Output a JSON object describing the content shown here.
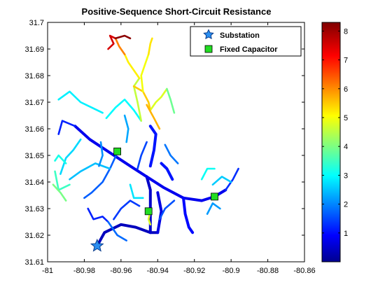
{
  "chart_data": {
    "type": "scatter",
    "title": "Positive-Sequence Short-Circuit Resistance",
    "xlabel": "",
    "ylabel": "",
    "xlim": [
      -81,
      -80.86
    ],
    "ylim": [
      31.61,
      31.7
    ],
    "x_ticks": [
      -81,
      -80.98,
      -80.96,
      -80.94,
      -80.92,
      -80.9,
      -80.88,
      -80.86
    ],
    "x_tick_labels": [
      "-81",
      "-80.98",
      "-80.96",
      "-80.94",
      "-80.92",
      "-80.9",
      "-80.88",
      "-80.86"
    ],
    "y_ticks": [
      31.61,
      31.62,
      31.63,
      31.64,
      31.65,
      31.66,
      31.67,
      31.68,
      31.69,
      31.7
    ],
    "y_tick_labels": [
      "31.61",
      "31.62",
      "31.63",
      "31.64",
      "31.65",
      "31.66",
      "31.67",
      "31.68",
      "31.69",
      "31.7"
    ],
    "grid": false,
    "legend": {
      "location": "top-right",
      "entries": [
        {
          "label": "Substation",
          "marker": "star",
          "color": "#2a8ef0"
        },
        {
          "label": "Fixed Capacitor",
          "marker": "square",
          "color": "#22dd22"
        }
      ]
    },
    "colorbar": {
      "range": [
        0,
        8.3
      ],
      "ticks": [
        1,
        2,
        3,
        4,
        5,
        6,
        7,
        8
      ],
      "tick_labels": [
        "1",
        "2",
        "3",
        "4",
        "5",
        "6",
        "7",
        "8"
      ],
      "colormap": "jet"
    },
    "substation": {
      "x": -80.973,
      "y": 31.616
    },
    "capacitors": [
      {
        "x": -80.962,
        "y": 31.6515
      },
      {
        "x": -80.945,
        "y": 31.629
      },
      {
        "x": -80.909,
        "y": 31.6345
      }
    ],
    "feeder_segments": [
      {
        "points": [
          [
            -80.973,
            31.616
          ],
          [
            -80.969,
            31.621
          ],
          [
            -80.96,
            31.624
          ],
          [
            -80.952,
            31.623
          ],
          [
            -80.944,
            31.621
          ],
          [
            -80.94,
            31.621
          ]
        ],
        "value": 0.5
      },
      {
        "points": [
          [
            -80.944,
            31.621
          ],
          [
            -80.944,
            31.629
          ],
          [
            -80.944,
            31.637
          ],
          [
            -80.946,
            31.642
          ]
        ],
        "value": 0.6
      },
      {
        "points": [
          [
            -80.946,
            31.642
          ],
          [
            -80.955,
            31.646
          ],
          [
            -80.966,
            31.651
          ],
          [
            -80.977,
            31.656
          ],
          [
            -80.985,
            31.661
          ]
        ],
        "value": 0.9
      },
      {
        "points": [
          [
            -80.946,
            31.642
          ],
          [
            -80.937,
            31.638
          ],
          [
            -80.926,
            31.634
          ],
          [
            -80.916,
            31.633
          ],
          [
            -80.909,
            31.6345
          ],
          [
            -80.903,
            31.637
          ]
        ],
        "value": 0.9
      },
      {
        "points": [
          [
            -80.944,
            31.646
          ],
          [
            -80.942,
            31.652
          ],
          [
            -80.941,
            31.658
          ],
          [
            -80.944,
            31.661
          ]
        ],
        "value": 1.2
      },
      {
        "points": [
          [
            -80.94,
            31.621
          ],
          [
            -80.938,
            31.629
          ],
          [
            -80.94,
            31.636
          ]
        ],
        "value": 0.8
      },
      {
        "points": [
          [
            -80.985,
            31.661
          ],
          [
            -80.992,
            31.663
          ],
          [
            -80.994,
            31.658
          ]
        ],
        "value": 1.3
      },
      {
        "points": [
          [
            -80.962,
            31.651
          ],
          [
            -80.966,
            31.645
          ],
          [
            -80.97,
            31.64
          ],
          [
            -80.976,
            31.636
          ],
          [
            -80.98,
            31.634
          ]
        ],
        "value": 1.8
      },
      {
        "points": [
          [
            -80.966,
            31.645
          ],
          [
            -80.974,
            31.647
          ],
          [
            -80.982,
            31.644
          ],
          [
            -80.988,
            31.641
          ]
        ],
        "value": 2.6
      },
      {
        "points": [
          [
            -80.993,
            31.643
          ],
          [
            -80.99,
            31.649
          ],
          [
            -80.986,
            31.652
          ],
          [
            -80.982,
            31.656
          ]
        ],
        "value": 2.8
      },
      {
        "points": [
          [
            -80.988,
            31.639
          ],
          [
            -80.994,
            31.637
          ],
          [
            -80.996,
            31.644
          ]
        ],
        "value": 3.6
      },
      {
        "points": [
          [
            -80.968,
            31.664
          ],
          [
            -80.963,
            31.668
          ],
          [
            -80.958,
            31.671
          ],
          [
            -80.953,
            31.667
          ],
          [
            -80.949,
            31.663
          ]
        ],
        "value": 3.1
      },
      {
        "points": [
          [
            -80.994,
            31.671
          ],
          [
            -80.988,
            31.674
          ],
          [
            -80.982,
            31.67
          ],
          [
            -80.976,
            31.668
          ],
          [
            -80.97,
            31.666
          ]
        ],
        "value": 3.0
      },
      {
        "points": [
          [
            -80.949,
            31.663
          ],
          [
            -80.951,
            31.67
          ],
          [
            -80.953,
            31.676
          ],
          [
            -80.95,
            31.679
          ]
        ],
        "value": 4.7
      },
      {
        "points": [
          [
            -80.95,
            31.679
          ],
          [
            -80.953,
            31.682
          ],
          [
            -80.956,
            31.685
          ],
          [
            -80.958,
            31.688
          ]
        ],
        "value": 5.3
      },
      {
        "points": [
          [
            -80.958,
            31.688
          ],
          [
            -80.961,
            31.691
          ],
          [
            -80.963,
            31.694
          ]
        ],
        "value": 6.2
      },
      {
        "points": [
          [
            -80.963,
            31.694
          ],
          [
            -80.966,
            31.695
          ],
          [
            -80.964,
            31.692
          ],
          [
            -80.967,
            31.69
          ]
        ],
        "value": 7.6
      },
      {
        "points": [
          [
            -80.963,
            31.694
          ],
          [
            -80.958,
            31.695
          ],
          [
            -80.955,
            31.694
          ]
        ],
        "value": 8.2
      },
      {
        "points": [
          [
            -80.953,
            31.676
          ],
          [
            -80.948,
            31.674
          ],
          [
            -80.945,
            31.67
          ],
          [
            -80.944,
            31.667
          ]
        ],
        "value": 5.6
      },
      {
        "points": [
          [
            -80.944,
            31.667
          ],
          [
            -80.941,
            31.67
          ],
          [
            -80.938,
            31.672
          ],
          [
            -80.935,
            31.675
          ]
        ],
        "value": 4.9
      },
      {
        "points": [
          [
            -80.948,
            31.674
          ],
          [
            -80.949,
            31.68
          ],
          [
            -80.947,
            31.684
          ],
          [
            -80.945,
            31.688
          ]
        ],
        "value": 5.1
      },
      {
        "points": [
          [
            -80.945,
            31.688
          ],
          [
            -80.944,
            31.692
          ],
          [
            -80.943,
            31.694
          ]
        ],
        "value": 5.4
      },
      {
        "points": [
          [
            -80.935,
            31.675
          ],
          [
            -80.933,
            31.671
          ],
          [
            -80.931,
            31.666
          ]
        ],
        "value": 4.0
      },
      {
        "points": [
          [
            -80.939,
            31.66
          ],
          [
            -80.942,
            31.664
          ],
          [
            -80.946,
            31.669
          ]
        ],
        "value": 5.8
      },
      {
        "points": [
          [
            -80.932,
            31.641
          ],
          [
            -80.935,
            31.645
          ],
          [
            -80.938,
            31.647
          ]
        ],
        "value": 1.2
      },
      {
        "points": [
          [
            -80.926,
            31.634
          ],
          [
            -80.925,
            31.628
          ],
          [
            -80.923,
            31.623
          ],
          [
            -80.921,
            31.621
          ]
        ],
        "value": 1.1
      },
      {
        "points": [
          [
            -80.903,
            31.637
          ],
          [
            -80.899,
            31.641
          ],
          [
            -80.896,
            31.645
          ]
        ],
        "value": 1.4
      },
      {
        "points": [
          [
            -80.916,
            31.641
          ],
          [
            -80.913,
            31.645
          ],
          [
            -80.909,
            31.645
          ]
        ],
        "value": 3.2
      },
      {
        "points": [
          [
            -80.91,
            31.639
          ],
          [
            -80.905,
            31.642
          ],
          [
            -80.9,
            31.64
          ]
        ],
        "value": 2.7
      },
      {
        "points": [
          [
            -80.964,
            31.626
          ],
          [
            -80.96,
            31.63
          ],
          [
            -80.955,
            31.633
          ],
          [
            -80.95,
            31.631
          ]
        ],
        "value": 1.5
      },
      {
        "points": [
          [
            -80.978,
            31.63
          ],
          [
            -80.975,
            31.626
          ],
          [
            -80.97,
            31.627
          ],
          [
            -80.967,
            31.625
          ]
        ],
        "value": 1.3
      },
      {
        "points": [
          [
            -80.967,
            31.625
          ],
          [
            -80.962,
            31.62
          ],
          [
            -80.957,
            31.618
          ]
        ],
        "value": 1.9
      },
      {
        "points": [
          [
            -80.99,
            31.647
          ],
          [
            -80.994,
            31.65
          ],
          [
            -80.996,
            31.648
          ]
        ],
        "value": 3.3
      },
      {
        "points": [
          [
            -80.997,
            31.639
          ],
          [
            -80.993,
            31.636
          ],
          [
            -80.99,
            31.633
          ]
        ],
        "value": 4.1
      },
      {
        "points": [
          [
            -80.972,
            31.646
          ],
          [
            -80.97,
            31.65
          ],
          [
            -80.971,
            31.655
          ]
        ],
        "value": 2.2
      },
      {
        "points": [
          [
            -80.957,
            31.655
          ],
          [
            -80.956,
            31.66
          ],
          [
            -80.958,
            31.665
          ]
        ],
        "value": 2.4
      },
      {
        "points": [
          [
            -80.946,
            31.655
          ],
          [
            -80.949,
            31.65
          ],
          [
            -80.951,
            31.645
          ]
        ],
        "value": 1.6
      },
      {
        "points": [
          [
            -80.936,
            31.654
          ],
          [
            -80.933,
            31.65
          ],
          [
            -80.929,
            31.647
          ]
        ],
        "value": 2.0
      },
      {
        "points": [
          [
            -80.955,
            31.639
          ],
          [
            -80.953,
            31.634
          ],
          [
            -80.948,
            31.634
          ]
        ],
        "value": 2.9
      },
      {
        "points": [
          [
            -80.939,
            31.626
          ],
          [
            -80.936,
            31.63
          ],
          [
            -80.931,
            31.633
          ]
        ],
        "value": 1.7
      },
      {
        "points": [
          [
            -80.913,
            31.628
          ],
          [
            -80.91,
            31.632
          ],
          [
            -80.906,
            31.63
          ]
        ],
        "value": 2.3
      },
      {
        "points": [
          [
            -80.944,
            31.629
          ],
          [
            -80.945,
            31.626
          ],
          [
            -80.944,
            31.624
          ]
        ],
        "value": 4.9
      }
    ]
  }
}
